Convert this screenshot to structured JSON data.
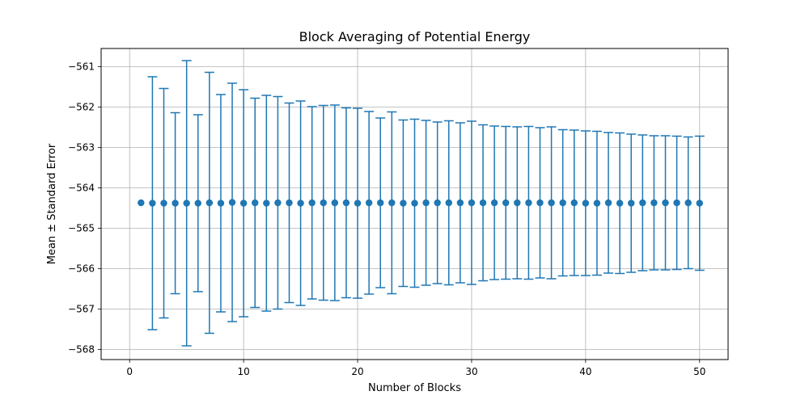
{
  "chart_data": {
    "type": "scatter",
    "title": "Block Averaging of Potential Energy",
    "xlabel": "Number of Blocks",
    "ylabel": "Mean ± Standard Error",
    "xlim": [
      -2.5,
      52.5
    ],
    "ylim": [
      -568.25,
      -560.55
    ],
    "xticks": [
      0,
      10,
      20,
      30,
      40,
      50
    ],
    "xtick_labels": [
      "0",
      "10",
      "20",
      "30",
      "40",
      "50"
    ],
    "yticks": [
      -568,
      -567,
      -566,
      -565,
      -564,
      -563,
      -562,
      -561
    ],
    "ytick_labels": [
      "−568",
      "−567",
      "−566",
      "−565",
      "−564",
      "−563",
      "−562",
      "−561"
    ],
    "grid": true,
    "series": [
      {
        "color": "#1f77b4",
        "marker": "circle",
        "x": [
          1,
          2,
          3,
          4,
          5,
          6,
          7,
          8,
          9,
          10,
          11,
          12,
          13,
          14,
          15,
          16,
          17,
          18,
          19,
          20,
          21,
          22,
          23,
          24,
          25,
          26,
          27,
          28,
          29,
          30,
          31,
          32,
          33,
          34,
          35,
          36,
          37,
          38,
          39,
          40,
          41,
          42,
          43,
          44,
          45,
          46,
          47,
          48,
          49,
          50
        ],
        "y": [
          -564.37,
          -564.38,
          -564.38,
          -564.38,
          -564.38,
          -564.38,
          -564.37,
          -564.38,
          -564.36,
          -564.38,
          -564.37,
          -564.38,
          -564.37,
          -564.37,
          -564.38,
          -564.37,
          -564.37,
          -564.37,
          -564.37,
          -564.38,
          -564.37,
          -564.37,
          -564.37,
          -564.38,
          -564.38,
          -564.37,
          -564.37,
          -564.37,
          -564.37,
          -564.37,
          -564.37,
          -564.37,
          -564.37,
          -564.37,
          -564.37,
          -564.37,
          -564.37,
          -564.37,
          -564.37,
          -564.38,
          -564.38,
          -564.37,
          -564.38,
          -564.38,
          -564.37,
          -564.37,
          -564.37,
          -564.37,
          -564.37,
          -564.38
        ],
        "yerr": [
          0,
          3.13,
          2.84,
          2.24,
          3.53,
          2.19,
          3.23,
          2.69,
          2.95,
          2.81,
          2.59,
          2.67,
          2.63,
          2.47,
          2.53,
          2.38,
          2.41,
          2.42,
          2.35,
          2.35,
          2.26,
          2.1,
          2.25,
          2.06,
          2.08,
          2.04,
          2.0,
          2.03,
          1.98,
          2.02,
          1.93,
          1.9,
          1.89,
          1.88,
          1.89,
          1.86,
          1.88,
          1.81,
          1.8,
          1.79,
          1.78,
          1.74,
          1.74,
          1.71,
          1.68,
          1.66,
          1.66,
          1.65,
          1.63,
          1.66
        ]
      }
    ]
  }
}
